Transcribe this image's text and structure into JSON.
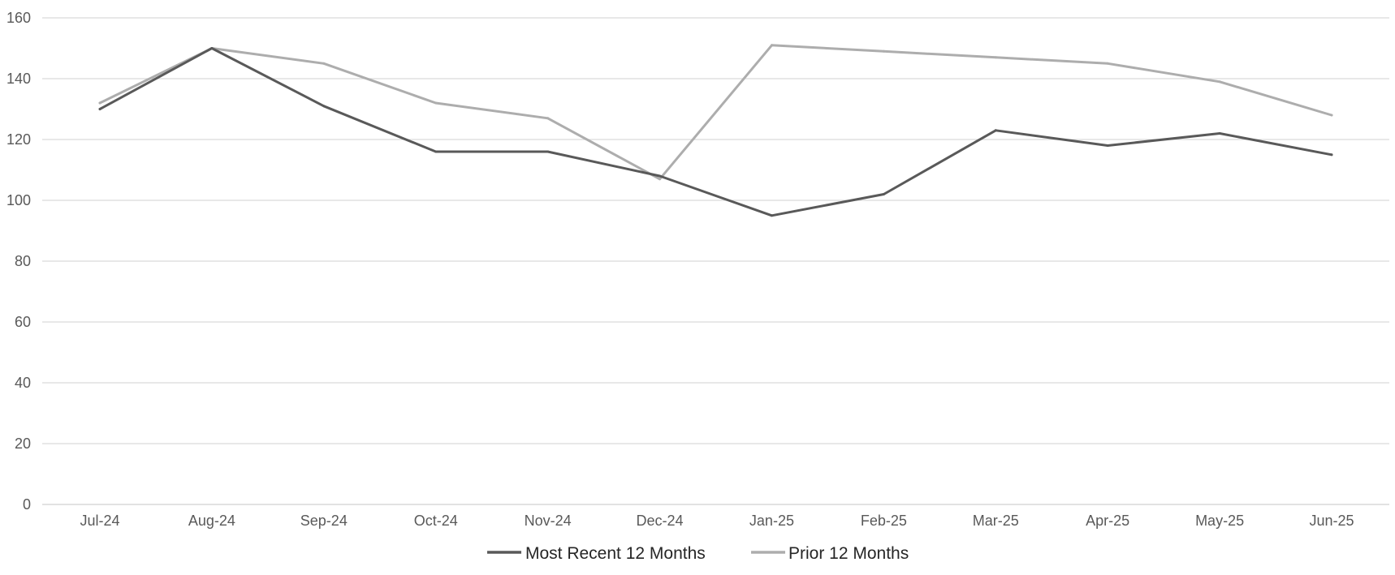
{
  "chart_data": {
    "type": "line",
    "title": "",
    "xlabel": "",
    "ylabel": "",
    "ylim": [
      0,
      160
    ],
    "yticks": [
      0,
      20,
      40,
      60,
      80,
      100,
      120,
      140,
      160
    ],
    "grid": true,
    "legend_position": "bottom-center",
    "categories": [
      "Jul-24",
      "Aug-24",
      "Sep-24",
      "Oct-24",
      "Nov-24",
      "Dec-24",
      "Jan-25",
      "Feb-25",
      "Mar-25",
      "Apr-25",
      "May-25",
      "Jun-25"
    ],
    "series": [
      {
        "name": "Most Recent 12 Months",
        "color": "#595959",
        "values": [
          130,
          150,
          131,
          116,
          116,
          108,
          95,
          102,
          123,
          118,
          122,
          115
        ]
      },
      {
        "name": "Prior 12 Months",
        "color": "#adadad",
        "values": [
          132,
          150,
          145,
          132,
          127,
          107,
          151,
          149,
          147,
          145,
          139,
          128
        ]
      }
    ]
  }
}
